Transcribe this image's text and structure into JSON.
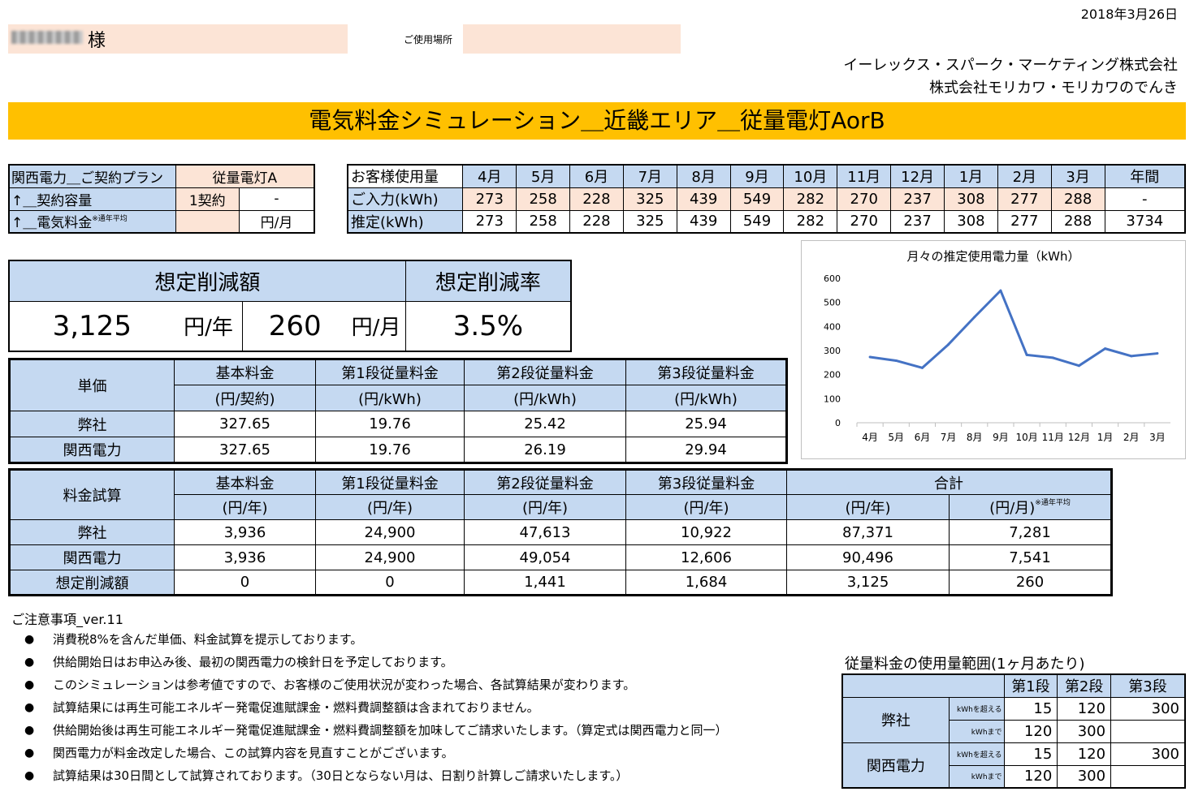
{
  "header": {
    "date": "2018年3月26日",
    "customer_suffix": "様",
    "location_label": "ご使用場所",
    "company_1": "イーレックス・スパーク・マーケティング株式会社",
    "company_2": "株式会社モリカワ・モリカワのでんき",
    "banner_title": "電気料金シミュレーション＿近畿エリア＿従量電灯AorB"
  },
  "plan": {
    "row1_label": "関西電力＿ご契約プラン",
    "row1_value": "従量電灯A",
    "row2_label": "↑＿契約容量",
    "row2_value": "1契約",
    "row2_extra": "-",
    "row3_label": "↑＿電気料金",
    "row3_note": "※通年平均",
    "row3_value": "",
    "row3_unit": "円/月"
  },
  "usage": {
    "header_label": "お客様使用量",
    "months": [
      "4月",
      "5月",
      "6月",
      "7月",
      "8月",
      "9月",
      "10月",
      "11月",
      "12月",
      "1月",
      "2月",
      "3月"
    ],
    "annual_label": "年間",
    "input_label": "ご入力(kWh)",
    "input_values": [
      "273",
      "258",
      "228",
      "325",
      "439",
      "549",
      "282",
      "270",
      "237",
      "308",
      "277",
      "288"
    ],
    "input_annual": "-",
    "est_label": "推定(kWh)",
    "est_values": [
      "273",
      "258",
      "228",
      "325",
      "439",
      "549",
      "282",
      "270",
      "237",
      "308",
      "277",
      "288"
    ],
    "est_annual": "3734"
  },
  "savings": {
    "amount_label": "想定削減額",
    "rate_label": "想定削減率",
    "yearly": "3,125",
    "yearly_unit": "円/年",
    "monthly": "260",
    "monthly_unit": "円/月",
    "rate": "3.5%"
  },
  "unit_price": {
    "corner": "単価",
    "headers": [
      "基本料金",
      "第1段従量料金",
      "第2段従量料金",
      "第3段従量料金"
    ],
    "subheaders": [
      "(円/契約)",
      "(円/kWh)",
      "(円/kWh)",
      "(円/kWh)"
    ],
    "rows": [
      {
        "label": "弊社",
        "values": [
          "327.65",
          "19.76",
          "25.42",
          "25.94"
        ]
      },
      {
        "label": "関西電力",
        "values": [
          "327.65",
          "19.76",
          "26.19",
          "29.94"
        ]
      }
    ]
  },
  "trial": {
    "corner": "料金試算",
    "headers": [
      "基本料金",
      "第1段従量料金",
      "第2段従量料金",
      "第3段従量料金",
      "合計"
    ],
    "subheaders": [
      "(円/年)",
      "(円/年)",
      "(円/年)",
      "(円/年)",
      "(円/年)",
      "(円/月)"
    ],
    "monthly_note": "※通年平均",
    "rows": [
      {
        "label": "弊社",
        "values": [
          "3,936",
          "24,900",
          "47,613",
          "10,922",
          "87,371",
          "7,281"
        ]
      },
      {
        "label": "関西電力",
        "values": [
          "3,936",
          "24,900",
          "49,054",
          "12,606",
          "90,496",
          "7,541"
        ]
      },
      {
        "label": "想定削減額",
        "values": [
          "0",
          "0",
          "1,441",
          "1,684",
          "3,125",
          "260"
        ]
      }
    ]
  },
  "notes": {
    "title": "ご注意事項_ver.11",
    "items": [
      "消費税8%を含んだ単価、料金試算を提示しております。",
      "供給開始日はお申込み後、最初の関西電力の検針日を予定しております。",
      "このシミュレーションは参考値ですので、お客様のご使用状況が変わった場合、各試算結果が変わります。",
      "試算結果には再生可能エネルギー発電促進賦課金・燃料費調整額は含まれておりません。",
      "供給開始後は再生可能エネルギー発電促進賦課金・燃料費調整額を加味してご請求いたします。（算定式は関西電力と同一）",
      "関西電力が料金改定した場合、この試算内容を見直すことがございます。",
      "試算結果は30日間として試算されております。（30日とならない月は、日割り計算しご請求いたします。）"
    ]
  },
  "range": {
    "title": "従量料金の使用量範囲(1ヶ月あたり)",
    "headers": [
      "第1段",
      "第2段",
      "第3段"
    ],
    "over_label": "kWhを超える",
    "under_label": "kWhまで",
    "rows": [
      {
        "label": "弊社",
        "over": [
          "15",
          "120",
          "300"
        ],
        "under": [
          "120",
          "300",
          ""
        ]
      },
      {
        "label": "関西電力",
        "over": [
          "15",
          "120",
          "300"
        ],
        "under": [
          "120",
          "300",
          ""
        ]
      }
    ]
  },
  "colors": {
    "banner": "#ffc000",
    "header_blue": "#c5d9f1",
    "input_peach": "#fce4d6",
    "line": "#4472c4"
  },
  "chart_data": {
    "type": "line",
    "title": "月々の推定使用電力量（kWh）",
    "categories": [
      "4月",
      "5月",
      "6月",
      "7月",
      "8月",
      "9月",
      "10月",
      "11月",
      "12月",
      "1月",
      "2月",
      "3月"
    ],
    "values": [
      273,
      258,
      228,
      325,
      439,
      549,
      282,
      270,
      237,
      308,
      277,
      288
    ],
    "yticks": [
      "0",
      "100",
      "200",
      "300",
      "400",
      "500",
      "600"
    ],
    "ylim": [
      0,
      600
    ],
    "grid": false,
    "legend": "none"
  }
}
